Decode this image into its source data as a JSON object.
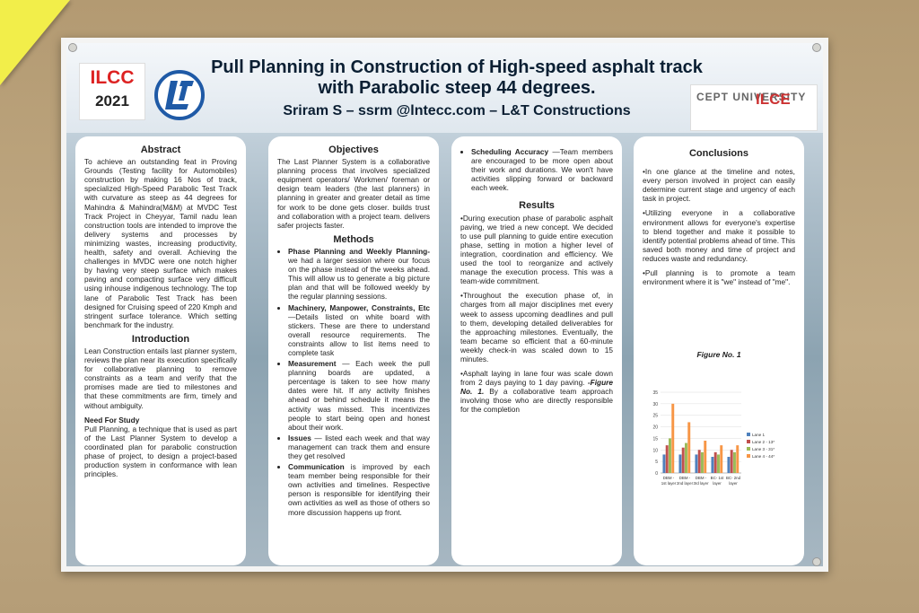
{
  "poster": {
    "ilcc": "ILCC",
    "year": "2021",
    "title_line1": "Pull Planning in Construction of High-speed asphalt track",
    "title_line2": "with Parabolic steep 44 degrees.",
    "authors": "Sriram S – ssrm @lntecc.com – L&T Constructions",
    "cept": "CEPT UNIVERSITY",
    "ilce": "ILCE"
  },
  "col1": {
    "abstract_h": "Abstract",
    "abstract": "To achieve an outstanding feat in Proving Grounds (Testing facility for Automobiles) construction by making 16 Nos of track, specialized High-Speed Parabolic Test Track with curvature as steep as 44 degrees for Mahindra & Mahindra(M&M) at MVDC Test Track Project in Cheyyar, Tamil nadu lean construction tools are intended to improve the delivery systems and processes by minimizing wastes, increasing productivity, health, safety and overall. Achieving the challenges in MVDC were one notch higher by having very steep surface which makes paving and compacting surface very difficult using inhouse indigenous technology. The top lane of Parabolic Test Track has been designed for Cruising speed of 220 Kmph and stringent surface tolerance. Which setting benchmark for the industry.",
    "intro_h": "Introduction",
    "intro": "Lean Construction entails last planner system, reviews the plan near its execution specifically for collaborative planning to remove constraints as a team and verify that the promises made are tied to milestones and that these commitments are firm, timely and without ambiguity.",
    "need_h": "Need For Study",
    "need": "Pull Planning, a technique that is used as part of the Last Planner System to develop a coordinated plan for parabolic construction phase of project, to design a project-based production system in conformance with lean principles."
  },
  "col2": {
    "obj_h": "Objectives",
    "obj": "The Last Planner System is a collaborative planning process that involves specialized equipment operators/ Workmen/ foreman or design team leaders (the last planners) in planning in greater and greater detail as time for work to be done gets closer. builds trust and collaboration with a project team. delivers safer projects faster.",
    "methods_h": "Methods",
    "m1_t": "Phase Planning and Weekly Planning-",
    "m1": " we had a larger session where our focus on the phase instead of the weeks ahead. This will allow us to generate a big picture plan and that will be followed weekly by the regular planning sessions.",
    "m2_t": "Machinery, Manpower, Constraints, Etc",
    "m2": " —Details listed on white board with stickers. These are there to understand overall resource requirements. The constraints allow to list items need to complete task",
    "m3_t": "Measurement",
    "m3": " — Each week the pull planning boards are updated, a percentage is taken to see how many dates were hit. If any activity finishes ahead or behind schedule it means the activity was missed. This incentivizes people to start being open and honest about their work.",
    "m4_t": "Issues",
    "m4": " — listed each week and that way management can track them and ensure they get resolved",
    "m5_t": "Communication",
    "m5": " is improved by each team member being responsible for their own activities and timelines. Respective person is responsible for identifying their own activities as well as those of others so more discussion happens up front."
  },
  "col3": {
    "sched_t": "Scheduling Accuracy",
    "sched": " —Team members are encouraged to be more open about their work and durations. We won't have activities slipping forward or backward each week.",
    "results_h": "Results",
    "r1": "•During execution phase of parabolic asphalt paving, we tried a new concept. We decided to use pull planning to guide entire execution phase, setting in motion a higher level of integration, coordination and efficiency. We used the tool to reorganize and actively manage the execution process. This was a team-wide commitment.",
    "r2": "•Throughout the execution phase of, in charges from all major disciplines met every week to assess upcoming deadlines and pull to them, developing detailed deliverables for the approaching milestones. Eventually, the team became so efficient that a 60-minute weekly check-in was scaled down to 15 minutes.",
    "r3a": "•Asphalt laying in lane four was scale down from 2 days paying to 1 day paving. ",
    "r3fig": "-Figure No. 1.",
    "r3b": " By a collaborative team approach involving those who are directly responsible for the completion"
  },
  "col4": {
    "conc_h": "Conclusions",
    "c1": "•In one glance at the timeline and notes, every person involved in project can easily determine current stage and urgency of each task in project.",
    "c2": "•Utilizing everyone in a collaborative environment allows for everyone's expertise to blend together and make it possible to identify potential problems ahead of time. This saved both money and time of project and reduces waste and redundancy.",
    "c3": "•Pull planning is to promote a team environment where it is \"we\" instead of \"me\".",
    "fig_caption": "Figure No. 1"
  },
  "chart_data": {
    "type": "bar",
    "categories": [
      "DBM - 1st layer",
      "DBM - 2nd layer",
      "DBM - 3rd layer",
      "BC- 1st layer",
      "BC- 2nd layer"
    ],
    "series": [
      {
        "name": "Lane 1",
        "values": [
          8,
          8,
          8,
          7,
          7
        ],
        "color": "#4f81bd"
      },
      {
        "name": "Lane 2 - 13*",
        "values": [
          12,
          11,
          10,
          9,
          10
        ],
        "color": "#c0504d"
      },
      {
        "name": "Lane 3 - 31*",
        "values": [
          15,
          13,
          9,
          8,
          9
        ],
        "color": "#9bbb59"
      },
      {
        "name": "Lane 4 - 44*",
        "values": [
          30,
          22,
          14,
          12,
          12
        ],
        "color": "#f79646"
      }
    ],
    "ylim": [
      0,
      35
    ],
    "yticks": [
      "0",
      "5",
      "10",
      "15",
      "20",
      "25",
      "30",
      "35"
    ],
    "legend": "right"
  }
}
